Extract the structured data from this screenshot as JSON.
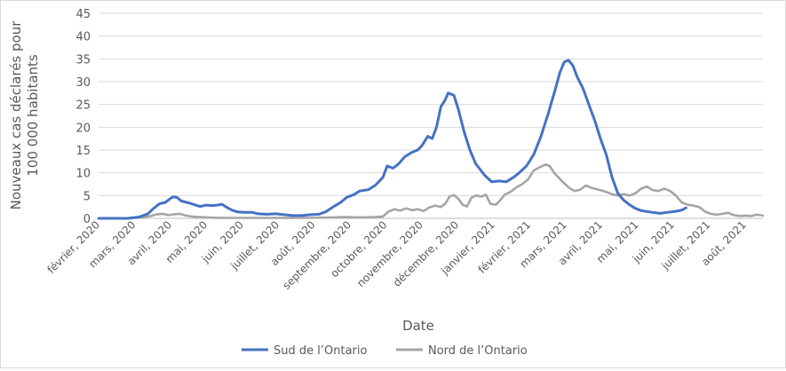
{
  "chart_data": {
    "type": "line",
    "xlabel": "Date",
    "ylabel": "Nouveaux cas déclarés pour 100 000 habitants",
    "ylabel_lines": [
      "Nouveaux cas déclarés pour",
      "100 000 habitants"
    ],
    "ylim": [
      0,
      45
    ],
    "yticks": [
      0,
      5,
      10,
      15,
      20,
      25,
      30,
      35,
      40,
      45
    ],
    "grid": true,
    "legend_position": "bottom",
    "categories": [
      "février, 2020",
      "mars, 2020",
      "avril, 2020",
      "mai, 2020",
      "juin, 2020",
      "juillet, 2020",
      "août, 2020",
      "septembre, 2020",
      "octobre, 2020",
      "novembre, 2020",
      "décembre, 2020",
      "janvier, 2021",
      "février, 2021",
      "mars, 2021",
      "avril, 2021",
      "mai, 2021",
      "juin, 2021",
      "juillet, 2021",
      "août, 2021"
    ],
    "series": [
      {
        "name": "Sud de l’Ontario",
        "color": "#4472c4",
        "points": [
          [
            0,
            0
          ],
          [
            1.0,
            0
          ],
          [
            1.4,
            0.3
          ],
          [
            1.7,
            1.0
          ],
          [
            1.9,
            2.2
          ],
          [
            2.1,
            3.2
          ],
          [
            2.3,
            3.5
          ],
          [
            2.55,
            4.7
          ],
          [
            2.7,
            4.6
          ],
          [
            2.85,
            3.8
          ],
          [
            3.1,
            3.4
          ],
          [
            3.3,
            3.0
          ],
          [
            3.5,
            2.6
          ],
          [
            3.7,
            2.9
          ],
          [
            3.9,
            2.8
          ],
          [
            4.1,
            2.9
          ],
          [
            4.25,
            3.1
          ],
          [
            4.4,
            2.5
          ],
          [
            4.6,
            1.8
          ],
          [
            4.8,
            1.4
          ],
          [
            5.0,
            1.3
          ],
          [
            5.3,
            1.3
          ],
          [
            5.5,
            1.0
          ],
          [
            5.8,
            0.9
          ],
          [
            6.1,
            1.0
          ],
          [
            6.4,
            0.8
          ],
          [
            6.7,
            0.6
          ],
          [
            7.0,
            0.6
          ],
          [
            7.3,
            0.8
          ],
          [
            7.6,
            0.9
          ],
          [
            7.85,
            1.5
          ],
          [
            8.1,
            2.6
          ],
          [
            8.35,
            3.5
          ],
          [
            8.55,
            4.6
          ],
          [
            8.8,
            5.2
          ],
          [
            9.0,
            6.0
          ],
          [
            9.3,
            6.3
          ],
          [
            9.55,
            7.3
          ],
          [
            9.8,
            9.0
          ],
          [
            9.95,
            11.5
          ],
          [
            10.15,
            11.0
          ],
          [
            10.35,
            12.0
          ],
          [
            10.55,
            13.5
          ],
          [
            10.8,
            14.5
          ],
          [
            11.0,
            15.0
          ],
          [
            11.15,
            16.0
          ],
          [
            11.35,
            18.0
          ],
          [
            11.5,
            17.5
          ],
          [
            11.65,
            20.0
          ],
          [
            11.8,
            24.5
          ],
          [
            11.95,
            26.0
          ],
          [
            12.05,
            27.5
          ],
          [
            12.25,
            27.0
          ],
          [
            12.4,
            24.0
          ],
          [
            12.6,
            19.0
          ],
          [
            12.8,
            15.0
          ],
          [
            13.0,
            12.0
          ],
          [
            13.3,
            9.5
          ],
          [
            13.55,
            8.0
          ],
          [
            13.8,
            8.2
          ],
          [
            14.05,
            8.0
          ],
          [
            14.3,
            9.0
          ],
          [
            14.5,
            10.0
          ],
          [
            14.75,
            11.5
          ],
          [
            15.0,
            14.0
          ],
          [
            15.25,
            18.0
          ],
          [
            15.5,
            23.0
          ],
          [
            15.75,
            28.5
          ],
          [
            15.9,
            32.0
          ],
          [
            16.05,
            34.3
          ],
          [
            16.2,
            34.7
          ],
          [
            16.35,
            33.5
          ],
          [
            16.5,
            31.0
          ],
          [
            16.7,
            28.5
          ],
          [
            16.9,
            25.0
          ],
          [
            17.1,
            21.5
          ],
          [
            17.3,
            17.5
          ],
          [
            17.5,
            14.0
          ],
          [
            17.7,
            9.0
          ],
          [
            17.9,
            5.5
          ],
          [
            18.1,
            4.0
          ],
          [
            18.3,
            3.0
          ],
          [
            18.5,
            2.2
          ],
          [
            18.7,
            1.7
          ],
          [
            18.9,
            1.5
          ],
          [
            19.1,
            1.3
          ],
          [
            19.35,
            1.1
          ],
          [
            19.6,
            1.3
          ],
          [
            19.85,
            1.5
          ],
          [
            20.1,
            1.8
          ],
          [
            20.25,
            2.3
          ]
        ]
      },
      {
        "name": "Nord de l’Ontario",
        "color": "#a5a5a5",
        "points": [
          [
            0,
            0
          ],
          [
            1.0,
            0
          ],
          [
            1.5,
            0.2
          ],
          [
            1.8,
            0.5
          ],
          [
            2.0,
            0.9
          ],
          [
            2.2,
            1.0
          ],
          [
            2.4,
            0.7
          ],
          [
            2.6,
            0.9
          ],
          [
            2.8,
            1.0
          ],
          [
            3.0,
            0.6
          ],
          [
            3.2,
            0.4
          ],
          [
            3.5,
            0.3
          ],
          [
            3.8,
            0.2
          ],
          [
            4.2,
            0.1
          ],
          [
            5.0,
            0.1
          ],
          [
            6.0,
            0.1
          ],
          [
            7.0,
            0.1
          ],
          [
            8.0,
            0.2
          ],
          [
            8.5,
            0.3
          ],
          [
            9.0,
            0.2
          ],
          [
            9.5,
            0.3
          ],
          [
            9.8,
            0.4
          ],
          [
            10.0,
            1.5
          ],
          [
            10.2,
            2.0
          ],
          [
            10.4,
            1.7
          ],
          [
            10.6,
            2.2
          ],
          [
            10.8,
            1.8
          ],
          [
            11.0,
            2.0
          ],
          [
            11.2,
            1.6
          ],
          [
            11.4,
            2.4
          ],
          [
            11.6,
            2.8
          ],
          [
            11.8,
            2.5
          ],
          [
            11.95,
            3.2
          ],
          [
            12.1,
            4.8
          ],
          [
            12.25,
            5.1
          ],
          [
            12.4,
            4.3
          ],
          [
            12.55,
            3.0
          ],
          [
            12.7,
            2.6
          ],
          [
            12.85,
            4.5
          ],
          [
            13.0,
            5.0
          ],
          [
            13.2,
            4.8
          ],
          [
            13.35,
            5.2
          ],
          [
            13.5,
            3.2
          ],
          [
            13.7,
            3.0
          ],
          [
            13.85,
            4.0
          ],
          [
            14.0,
            5.2
          ],
          [
            14.2,
            5.8
          ],
          [
            14.4,
            6.8
          ],
          [
            14.6,
            7.5
          ],
          [
            14.8,
            8.5
          ],
          [
            15.0,
            10.5
          ],
          [
            15.2,
            11.2
          ],
          [
            15.4,
            11.8
          ],
          [
            15.55,
            11.5
          ],
          [
            15.7,
            10.0
          ],
          [
            15.85,
            9.0
          ],
          [
            16.0,
            8.0
          ],
          [
            16.2,
            6.8
          ],
          [
            16.4,
            6.0
          ],
          [
            16.6,
            6.3
          ],
          [
            16.8,
            7.2
          ],
          [
            16.95,
            6.8
          ],
          [
            17.1,
            6.5
          ],
          [
            17.3,
            6.2
          ],
          [
            17.5,
            5.8
          ],
          [
            17.7,
            5.3
          ],
          [
            17.9,
            5.0
          ],
          [
            18.1,
            5.3
          ],
          [
            18.3,
            5.0
          ],
          [
            18.5,
            5.5
          ],
          [
            18.7,
            6.5
          ],
          [
            18.9,
            7.0
          ],
          [
            19.1,
            6.2
          ],
          [
            19.3,
            6.0
          ],
          [
            19.5,
            6.5
          ],
          [
            19.7,
            6.0
          ],
          [
            19.9,
            5.0
          ],
          [
            20.1,
            3.5
          ],
          [
            20.3,
            3.0
          ],
          [
            20.5,
            2.8
          ],
          [
            20.7,
            2.5
          ],
          [
            20.9,
            1.5
          ],
          [
            21.1,
            1.0
          ],
          [
            21.3,
            0.8
          ],
          [
            21.5,
            1.0
          ],
          [
            21.7,
            1.2
          ],
          [
            21.9,
            0.7
          ],
          [
            22.1,
            0.5
          ],
          [
            22.3,
            0.6
          ],
          [
            22.5,
            0.5
          ],
          [
            22.7,
            0.8
          ],
          [
            22.9,
            0.6
          ]
        ]
      }
    ]
  }
}
